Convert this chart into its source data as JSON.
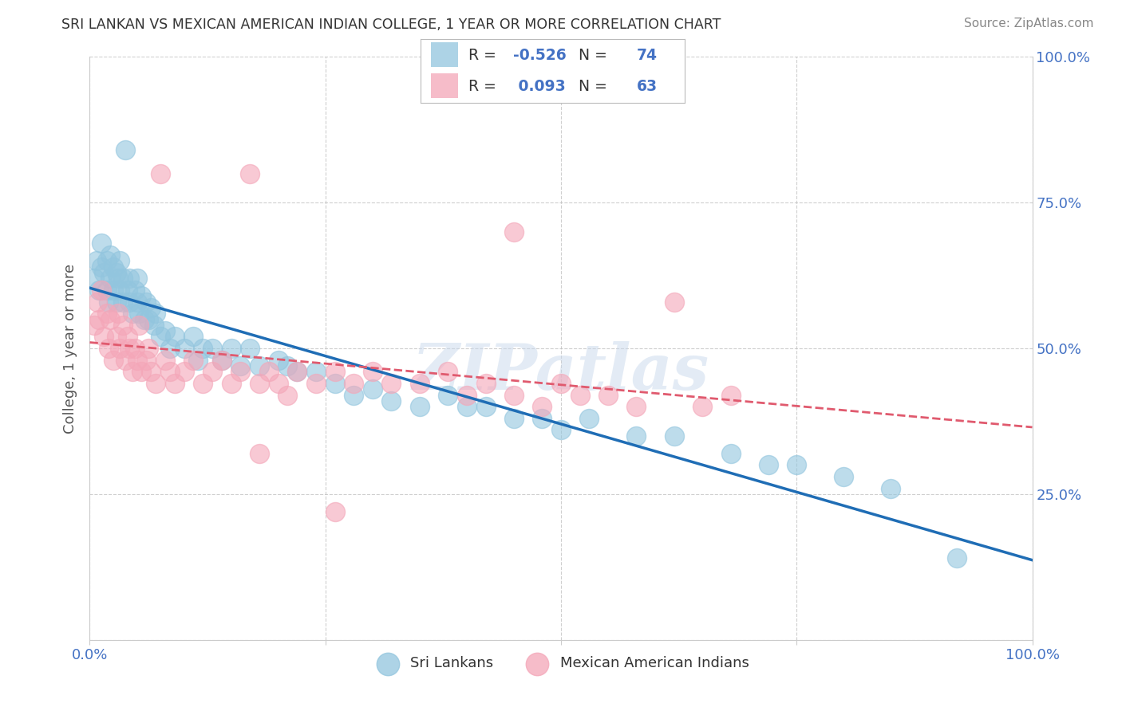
{
  "title": "SRI LANKAN VS MEXICAN AMERICAN INDIAN COLLEGE, 1 YEAR OR MORE CORRELATION CHART",
  "source": "Source: ZipAtlas.com",
  "ylabel": "College, 1 year or more",
  "xlabel": "",
  "xlim": [
    0.0,
    1.0
  ],
  "ylim": [
    0.0,
    1.0
  ],
  "xticks": [
    0.0,
    0.25,
    0.5,
    0.75,
    1.0
  ],
  "xticklabels": [
    "0.0%",
    "",
    "",
    "",
    "100.0%"
  ],
  "yticks": [
    0.0,
    0.25,
    0.5,
    0.75,
    1.0
  ],
  "yticklabels_right": [
    "",
    "25.0%",
    "50.0%",
    "75.0%",
    "100.0%"
  ],
  "sri_lankan_color": "#92c5de",
  "mexican_color": "#f4a6b8",
  "sri_lankan_line_color": "#1f6db5",
  "mexican_line_color": "#e05a6e",
  "sri_lankan_R": -0.526,
  "sri_lankan_N": 74,
  "mexican_R": 0.093,
  "mexican_N": 63,
  "legend_label_1": "Sri Lankans",
  "legend_label_2": "Mexican American Indians",
  "watermark": "ZIPatlas",
  "grid_color": "#bbbbbb",
  "background_color": "#ffffff",
  "legend_R_N_color": "#4472c4",
  "legend_text_color": "#333333",
  "ytick_label_color": "#4472c4",
  "xtick_label_color": "#4472c4",
  "sri_lankans_x": [
    0.005,
    0.007,
    0.01,
    0.012,
    0.012,
    0.015,
    0.018,
    0.018,
    0.02,
    0.022,
    0.022,
    0.025,
    0.025,
    0.028,
    0.028,
    0.03,
    0.032,
    0.032,
    0.035,
    0.035,
    0.038,
    0.04,
    0.042,
    0.042,
    0.045,
    0.048,
    0.05,
    0.05,
    0.052,
    0.055,
    0.058,
    0.06,
    0.062,
    0.065,
    0.068,
    0.07,
    0.075,
    0.08,
    0.085,
    0.09,
    0.1,
    0.11,
    0.115,
    0.12,
    0.13,
    0.14,
    0.15,
    0.16,
    0.17,
    0.18,
    0.2,
    0.21,
    0.22,
    0.24,
    0.26,
    0.28,
    0.3,
    0.32,
    0.35,
    0.38,
    0.4,
    0.42,
    0.45,
    0.48,
    0.5,
    0.53,
    0.58,
    0.62,
    0.68,
    0.72,
    0.75,
    0.8,
    0.85,
    0.92
  ],
  "sri_lankans_y": [
    0.62,
    0.65,
    0.6,
    0.64,
    0.68,
    0.63,
    0.6,
    0.65,
    0.58,
    0.62,
    0.66,
    0.6,
    0.64,
    0.58,
    0.63,
    0.62,
    0.6,
    0.65,
    0.58,
    0.62,
    0.84,
    0.6,
    0.58,
    0.62,
    0.56,
    0.6,
    0.58,
    0.62,
    0.56,
    0.59,
    0.55,
    0.58,
    0.55,
    0.57,
    0.54,
    0.56,
    0.52,
    0.53,
    0.5,
    0.52,
    0.5,
    0.52,
    0.48,
    0.5,
    0.5,
    0.48,
    0.5,
    0.47,
    0.5,
    0.47,
    0.48,
    0.47,
    0.46,
    0.46,
    0.44,
    0.42,
    0.43,
    0.41,
    0.4,
    0.42,
    0.4,
    0.4,
    0.38,
    0.38,
    0.36,
    0.38,
    0.35,
    0.35,
    0.32,
    0.3,
    0.3,
    0.28,
    0.26,
    0.14
  ],
  "mexicans_x": [
    0.005,
    0.008,
    0.01,
    0.012,
    0.015,
    0.018,
    0.02,
    0.022,
    0.025,
    0.028,
    0.03,
    0.032,
    0.035,
    0.038,
    0.04,
    0.042,
    0.045,
    0.048,
    0.05,
    0.052,
    0.055,
    0.06,
    0.062,
    0.065,
    0.07,
    0.075,
    0.08,
    0.085,
    0.09,
    0.1,
    0.11,
    0.12,
    0.13,
    0.14,
    0.15,
    0.16,
    0.17,
    0.18,
    0.19,
    0.2,
    0.21,
    0.22,
    0.24,
    0.26,
    0.28,
    0.3,
    0.32,
    0.35,
    0.38,
    0.4,
    0.42,
    0.45,
    0.48,
    0.5,
    0.52,
    0.55,
    0.58,
    0.62,
    0.65,
    0.68,
    0.18,
    0.26,
    0.45
  ],
  "mexicans_y": [
    0.54,
    0.58,
    0.55,
    0.6,
    0.52,
    0.56,
    0.5,
    0.55,
    0.48,
    0.52,
    0.56,
    0.5,
    0.54,
    0.48,
    0.52,
    0.5,
    0.46,
    0.5,
    0.48,
    0.54,
    0.46,
    0.48,
    0.5,
    0.46,
    0.44,
    0.8,
    0.48,
    0.46,
    0.44,
    0.46,
    0.48,
    0.44,
    0.46,
    0.48,
    0.44,
    0.46,
    0.8,
    0.44,
    0.46,
    0.44,
    0.42,
    0.46,
    0.44,
    0.46,
    0.44,
    0.46,
    0.44,
    0.44,
    0.46,
    0.42,
    0.44,
    0.42,
    0.4,
    0.44,
    0.42,
    0.42,
    0.4,
    0.58,
    0.4,
    0.42,
    0.32,
    0.22,
    0.7
  ]
}
